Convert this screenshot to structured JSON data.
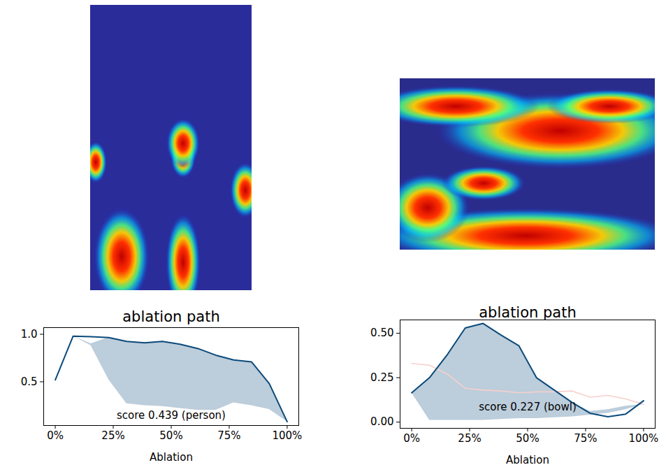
{
  "chart_data": [
    {
      "type": "line",
      "title": "ablation path",
      "x_label": "Ablation",
      "annotation": "score 0.439 (person)",
      "x": [
        0,
        7.7,
        15.4,
        23.1,
        30.8,
        38.5,
        46.2,
        53.8,
        61.5,
        69.2,
        76.9,
        84.6,
        92.3,
        100
      ],
      "xlim": [
        -5,
        105
      ],
      "xticks": [
        {
          "value": 0,
          "label": "0%"
        },
        {
          "value": 25,
          "label": "25%"
        },
        {
          "value": 50,
          "label": "50%"
        },
        {
          "value": 75,
          "label": "75%"
        },
        {
          "value": 100,
          "label": "100%"
        }
      ],
      "ylim": [
        0.04,
        1.07
      ],
      "yticks": [
        {
          "value": 0.5,
          "label": "0.5"
        },
        {
          "value": 1,
          "label": "1.0"
        }
      ],
      "series": [
        {
          "color": "#0b4a7a",
          "values": [
            0.52,
            0.98,
            0.975,
            0.965,
            0.925,
            0.91,
            0.925,
            0.895,
            0.85,
            0.78,
            0.73,
            0.71,
            0.48,
            0.08
          ]
        }
      ],
      "band": {
        "color": "#bccddb",
        "lower": [
          null,
          0.98,
          0.88,
          0.52,
          0.27,
          0.25,
          0.24,
          0.22,
          0.2,
          0.2,
          0.28,
          0.25,
          0.21,
          0.08
        ],
        "upper": [
          null,
          0.98,
          0.9,
          0.965,
          0.925,
          0.91,
          0.925,
          0.895,
          0.85,
          0.78,
          0.73,
          0.71,
          0.48,
          0.08
        ]
      }
    },
    {
      "type": "line",
      "title": "ablation path",
      "x_label": "Ablation",
      "annotation": "score 0.227 (bowl)",
      "x": [
        0,
        7.7,
        15.4,
        23.1,
        30.8,
        38.5,
        46.2,
        53.8,
        61.5,
        69.2,
        76.9,
        84.6,
        92.3,
        100
      ],
      "xlim": [
        -5,
        105
      ],
      "xticks": [
        {
          "value": 0,
          "label": "0%"
        },
        {
          "value": 25,
          "label": "25%"
        },
        {
          "value": 50,
          "label": "50%"
        },
        {
          "value": 75,
          "label": "75%"
        },
        {
          "value": 100,
          "label": "100%"
        }
      ],
      "ylim": [
        -0.035,
        0.575
      ],
      "yticks": [
        {
          "value": 0,
          "label": "0.00"
        },
        {
          "value": 0.25,
          "label": "0.25"
        },
        {
          "value": 0.5,
          "label": "0.50"
        }
      ],
      "series": [
        {
          "color": "#f5d0cd",
          "values": [
            0.33,
            0.32,
            0.27,
            0.19,
            0.18,
            0.175,
            0.165,
            0.17,
            0.17,
            0.175,
            0.14,
            0.15,
            0.13,
            0.1
          ]
        },
        {
          "color": "#0b4a7a",
          "values": [
            0.165,
            0.25,
            0.38,
            0.53,
            0.555,
            0.49,
            0.43,
            0.25,
            0.18,
            0.11,
            0.05,
            0.03,
            0.045,
            0.12
          ]
        }
      ],
      "band": {
        "color": "#bccddb",
        "lower": [
          0.165,
          0.01,
          0.01,
          0.01,
          0.01,
          0.015,
          0.02,
          0.02,
          0.025,
          0.03,
          0.04,
          0.05,
          0.07,
          0.1
        ],
        "upper": [
          0.165,
          0.25,
          0.38,
          0.53,
          0.555,
          0.49,
          0.43,
          0.25,
          0.18,
          0.11,
          0.06,
          0.07,
          0.09,
          0.1
        ]
      }
    }
  ]
}
